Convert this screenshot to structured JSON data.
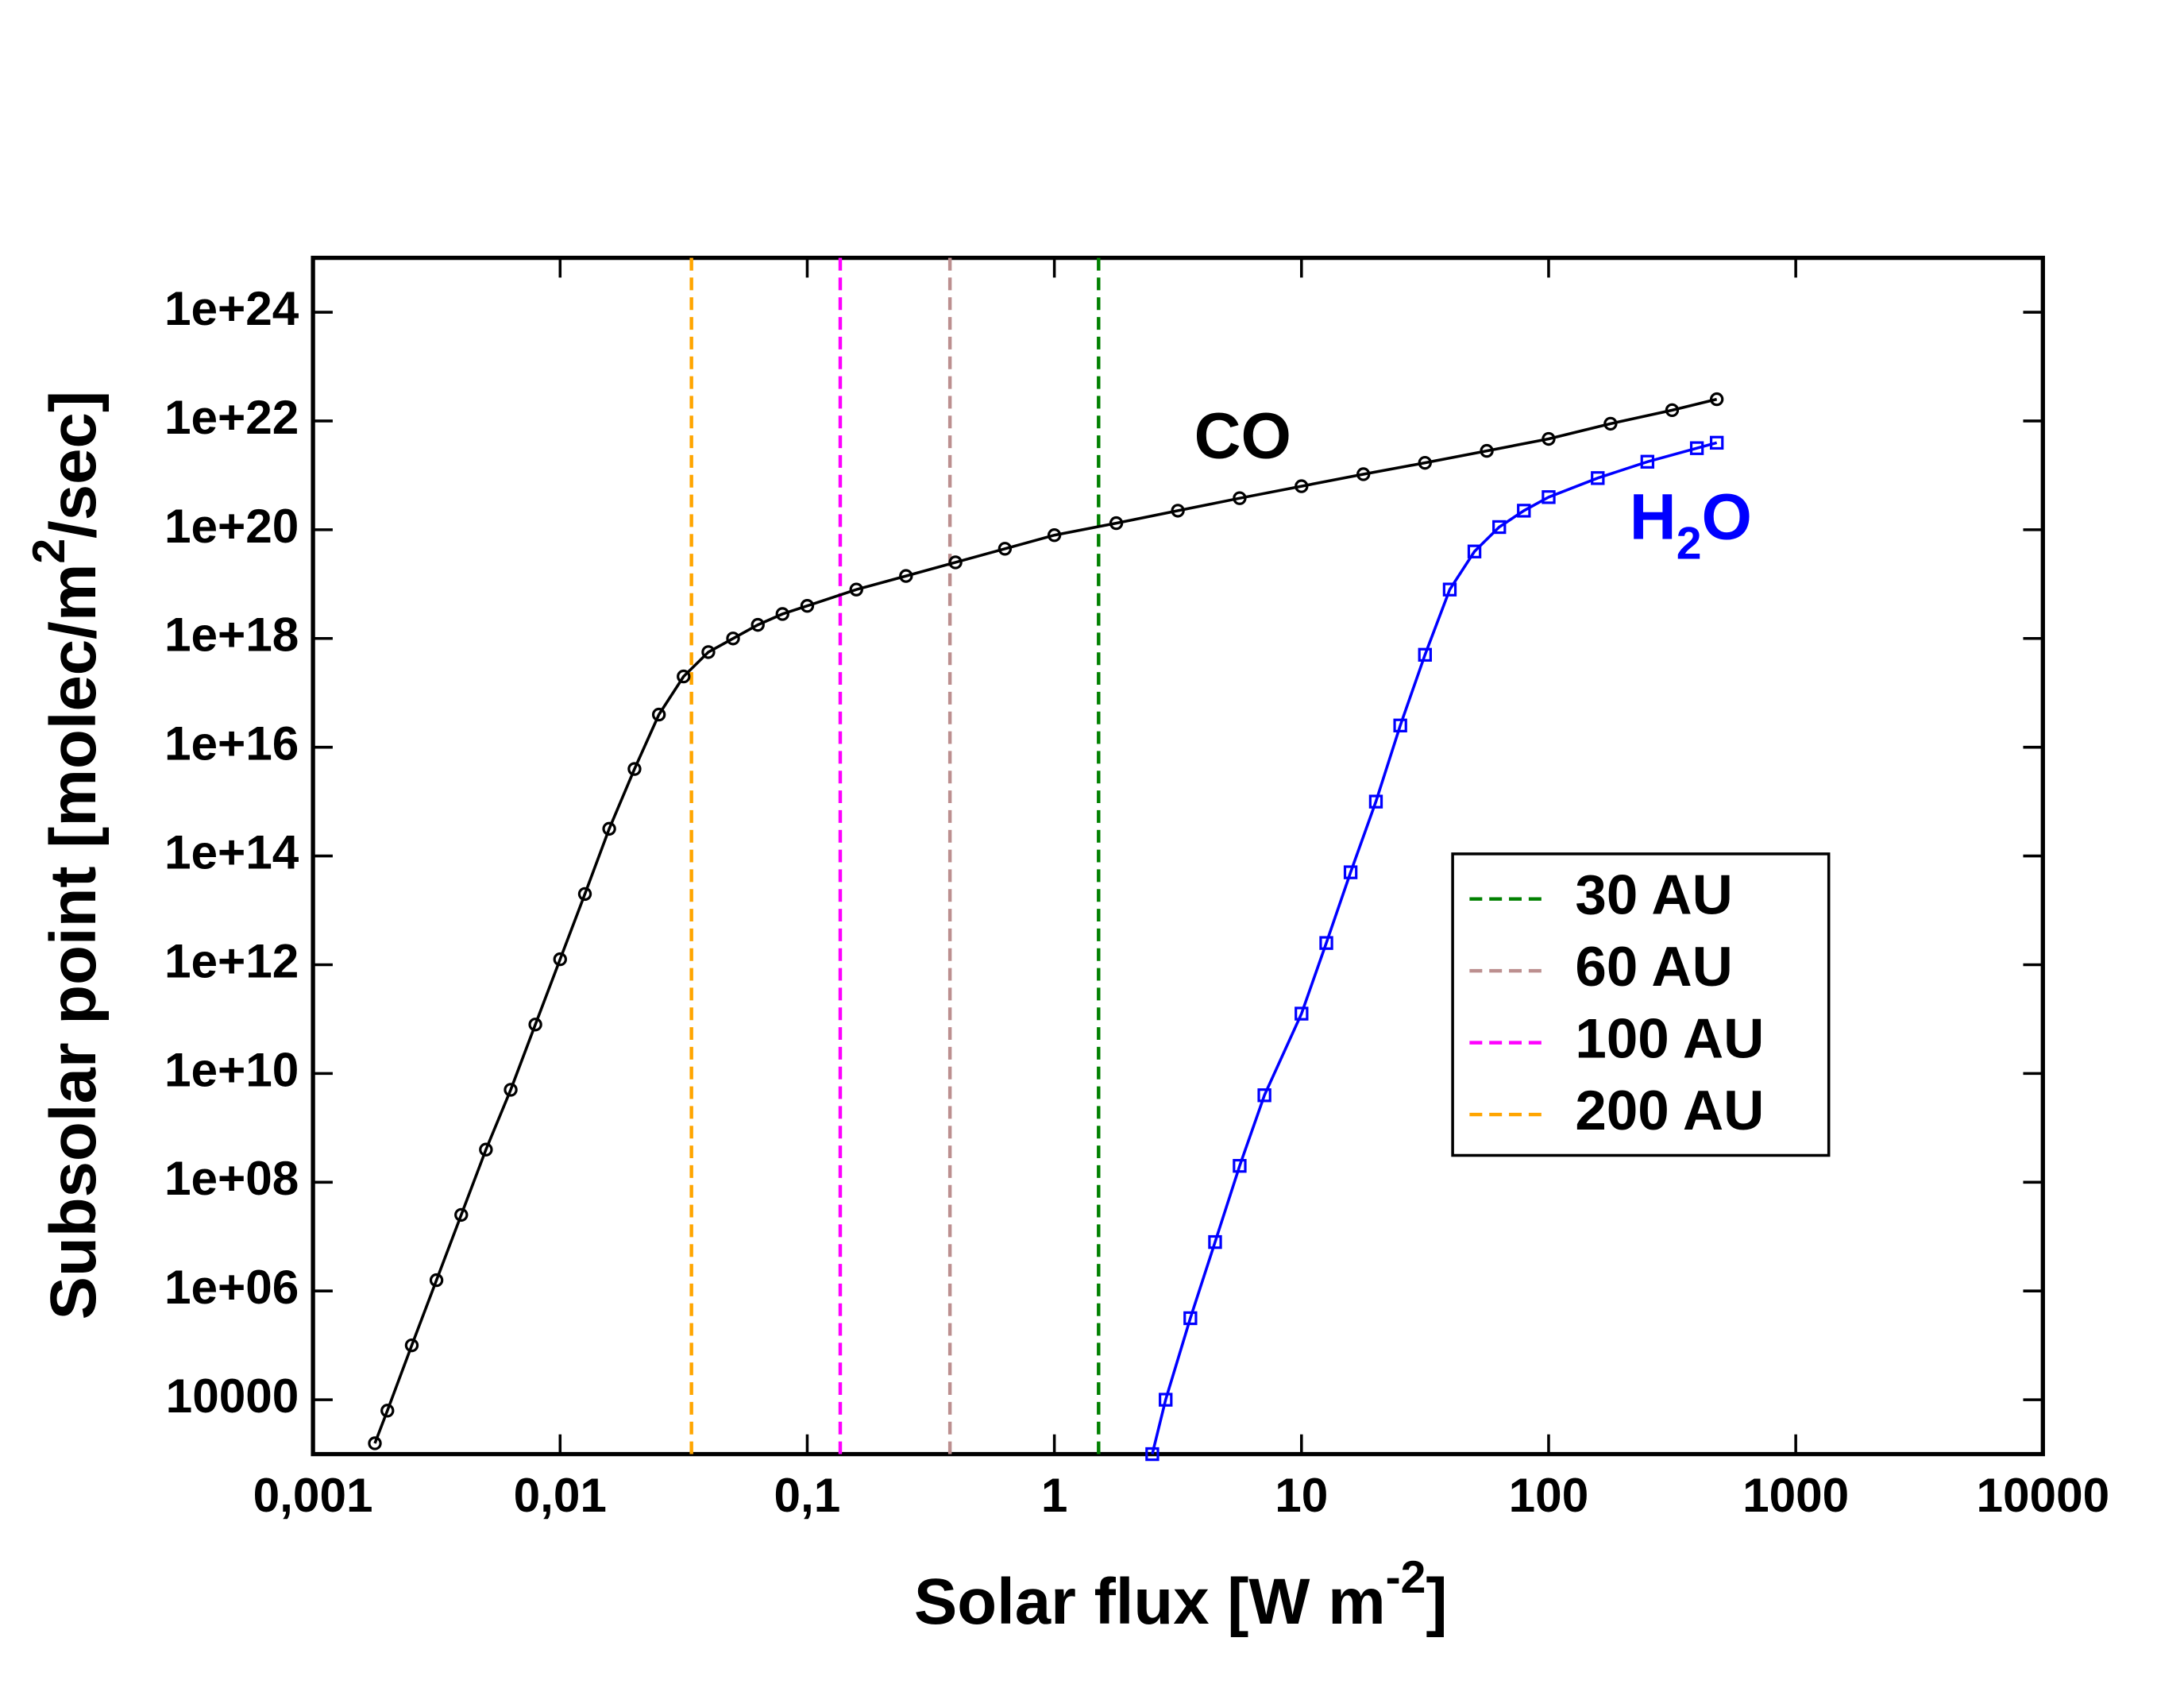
{
  "chart_data": {
    "type": "line",
    "xlabel": [
      "Solar flux [W m",
      "-2",
      "]"
    ],
    "ylabel": [
      "Subsolar point [molec/m",
      "2",
      "/sec]"
    ],
    "xlog": true,
    "ylog": true,
    "xlim": [
      0.001,
      10000
    ],
    "ylim": [
      1000,
      1e+25
    ],
    "xticks": [
      {
        "value": 0.001,
        "label": "0,001"
      },
      {
        "value": 0.01,
        "label": "0,01"
      },
      {
        "value": 0.1,
        "label": "0,1"
      },
      1,
      10,
      100,
      1000,
      10000
    ],
    "yticks": [
      10000,
      {
        "value": 1000000.0,
        "label": "1e+06"
      },
      {
        "value": 100000000.0,
        "label": "1e+08"
      },
      {
        "value": 10000000000.0,
        "label": "1e+10"
      },
      {
        "value": 1000000000000.0,
        "label": "1e+12"
      },
      {
        "value": 100000000000000.0,
        "label": "1e+14"
      },
      {
        "value": 1e+16,
        "label": "1e+16"
      },
      {
        "value": 1e+18,
        "label": "1e+18"
      },
      {
        "value": 1e+20,
        "label": "1e+20"
      },
      {
        "value": 1e+22,
        "label": "1e+22"
      },
      {
        "value": 1e+24,
        "label": "1e+24"
      }
    ],
    "series": [
      {
        "name": "CO",
        "color": "#000000",
        "marker": "circle",
        "x": [
          0.00178,
          0.002,
          0.00251,
          0.00316,
          0.00398,
          0.00501,
          0.00631,
          0.00794,
          0.01,
          0.0126,
          0.0158,
          0.02,
          0.0251,
          0.0316,
          0.0398,
          0.0501,
          0.0631,
          0.0794,
          0.1,
          0.158,
          0.251,
          0.398,
          0.631,
          1,
          1.78,
          3.16,
          5.62,
          10,
          17.8,
          31.6,
          56.2,
          100,
          178,
          316,
          479
        ],
        "values": [
          1580,
          6300,
          100000.0,
          1580000.0,
          25100000.0,
          398000000.0,
          5010000000.0,
          79400000000.0,
          1260000000000.0,
          20000000000000.0,
          316000000000000.0,
          3980000000000000.0,
          3.98e+16,
          2e+17,
          5.62e+17,
          1e+18,
          1.78e+18,
          2.82e+18,
          3.98e+18,
          7.94e+18,
          1.41e+19,
          2.51e+19,
          4.47e+19,
          7.94e+19,
          1.32e+20,
          2.24e+20,
          3.8e+20,
          6.31e+20,
          1.05e+21,
          1.7e+21,
          2.82e+21,
          4.68e+21,
          8.91e+21,
          1.58e+22,
          2.51e+22
        ]
      },
      {
        "name": [
          "H",
          "2",
          "O"
        ],
        "color": "#0000ff",
        "marker": "square",
        "x": [
          2.49,
          2.82,
          3.55,
          4.47,
          5.62,
          7.08,
          10,
          12.6,
          15.8,
          20,
          25.1,
          31.6,
          39.8,
          50.1,
          63.1,
          79.4,
          100,
          158,
          251,
          398,
          479
        ],
        "values": [
          1000,
          10000,
          316000.0,
          7940000.0,
          200000000.0,
          3980000000.0,
          126000000000.0,
          2510000000000.0,
          50100000000000.0,
          1000000000000000.0,
          2.51e+16,
          5.01e+17,
          7.94e+18,
          3.98e+19,
          1.12e+20,
          2.24e+20,
          3.98e+20,
          8.91e+20,
          1.78e+21,
          3.16e+21,
          3.98e+21
        ]
      }
    ],
    "vlines": [
      {
        "label": "30 AU",
        "x": 1.51,
        "color": "#008000"
      },
      {
        "label": "60 AU",
        "x": 0.378,
        "color": "#bc8f8f"
      },
      {
        "label": "100 AU",
        "x": 0.136,
        "color": "#ff00ff"
      },
      {
        "label": "200 AU",
        "x": 0.034,
        "color": "#ffa500"
      }
    ]
  }
}
